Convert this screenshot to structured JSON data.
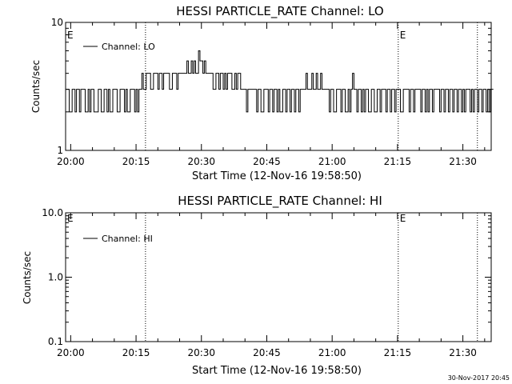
{
  "timestamp": "30-Nov-2017 20:45",
  "chart_data": [
    {
      "type": "line",
      "title": "HESSI PARTICLE_RATE Channel: LO",
      "xlabel": "Start Time (12-Nov-16 19:58:50)",
      "ylabel": "Counts/sec",
      "yscale": "log",
      "ylim": [
        1,
        10
      ],
      "xlim": [
        "19:58:50",
        "21:36:30"
      ],
      "x_ticks": [
        "20:00",
        "20:15",
        "20:30",
        "20:45",
        "21:00",
        "21:15",
        "21:30"
      ],
      "y_ticks": [
        "1",
        "10"
      ],
      "grid": false,
      "legend": "top-left",
      "markers": [
        {
          "time": "20:17:10",
          "label": ""
        },
        {
          "time": "21:15:10",
          "label": "E"
        },
        {
          "time": "21:33:20",
          "label": ""
        }
      ],
      "corner_label": "E",
      "series": [
        {
          "name": "Channel: LO",
          "step": true,
          "t_start": "19:59:00",
          "dt_sec": 20,
          "values": [
            3,
            3,
            2,
            2,
            3,
            3,
            2,
            3,
            3,
            2,
            3,
            3,
            3,
            2,
            2,
            3,
            2,
            3,
            3,
            2,
            2,
            2,
            3,
            3,
            2,
            2,
            3,
            3,
            2,
            3,
            2,
            2,
            3,
            3,
            3,
            2,
            2,
            3,
            3,
            3,
            2,
            3,
            2,
            2,
            3,
            3,
            3,
            2,
            3,
            2,
            3,
            3,
            4,
            3,
            3,
            4,
            4,
            4,
            3,
            3,
            4,
            4,
            4,
            3,
            4,
            4,
            3,
            4,
            4,
            4,
            4,
            3,
            3,
            4,
            4,
            4,
            3,
            4,
            4,
            4,
            4,
            4,
            4,
            5,
            4,
            4,
            5,
            4,
            5,
            4,
            4,
            6,
            5,
            5,
            4,
            5,
            4,
            4,
            4,
            4,
            4,
            3,
            3,
            4,
            4,
            3,
            4,
            4,
            3,
            4,
            3,
            4,
            4,
            4,
            3,
            3,
            4,
            3,
            4,
            4,
            3,
            3,
            3,
            3,
            2,
            3,
            3,
            3,
            3,
            3,
            3,
            2,
            3,
            3,
            2,
            2,
            3,
            3,
            3,
            2,
            3,
            3,
            2,
            3,
            3,
            2,
            3,
            2,
            2,
            3,
            3,
            2,
            3,
            3,
            2,
            3,
            3,
            2,
            3,
            3,
            2,
            3,
            3,
            3,
            3,
            4,
            3,
            3,
            3,
            4,
            3,
            3,
            4,
            3,
            3,
            4,
            3,
            3,
            3,
            3,
            3,
            2,
            3,
            3,
            2,
            2,
            3,
            3,
            3,
            2,
            3,
            3,
            2,
            2,
            3,
            2,
            3,
            4,
            3,
            3,
            2,
            3,
            3,
            2,
            3,
            2,
            3,
            3,
            2,
            2,
            3,
            3,
            2,
            2,
            3,
            3,
            2,
            3,
            3,
            3,
            2,
            3,
            3,
            2,
            3,
            3,
            2,
            3,
            3,
            3,
            2,
            2,
            3,
            3,
            3,
            3,
            2,
            3,
            3,
            2,
            3,
            3,
            3,
            3,
            2,
            3,
            3,
            2,
            3,
            2,
            3,
            3,
            2,
            3,
            3,
            3,
            3,
            2,
            3,
            3,
            2,
            3,
            3,
            2,
            3,
            3,
            2,
            3,
            3,
            2,
            3,
            3,
            2,
            3,
            2,
            3,
            3,
            3,
            2,
            3,
            2,
            3,
            3,
            2,
            3,
            3,
            2,
            3,
            3,
            2,
            3,
            2,
            3,
            3
          ]
        }
      ]
    },
    {
      "type": "line",
      "title": "HESSI PARTICLE_RATE Channel: HI",
      "xlabel": "Start Time (12-Nov-16 19:58:50)",
      "ylabel": "Counts/sec",
      "yscale": "log",
      "ylim": [
        0.1,
        10
      ],
      "xlim": [
        "19:58:50",
        "21:36:30"
      ],
      "x_ticks": [
        "20:00",
        "20:15",
        "20:30",
        "20:45",
        "21:00",
        "21:15",
        "21:30"
      ],
      "y_ticks": [
        "0.1",
        "1.0",
        "10.0"
      ],
      "grid": false,
      "legend": "top-left",
      "markers": [
        {
          "time": "20:17:10",
          "label": ""
        },
        {
          "time": "21:15:10",
          "label": "E"
        },
        {
          "time": "21:33:20",
          "label": ""
        }
      ],
      "corner_label": "E",
      "series": [
        {
          "name": "Channel: HI",
          "values": []
        }
      ]
    }
  ]
}
